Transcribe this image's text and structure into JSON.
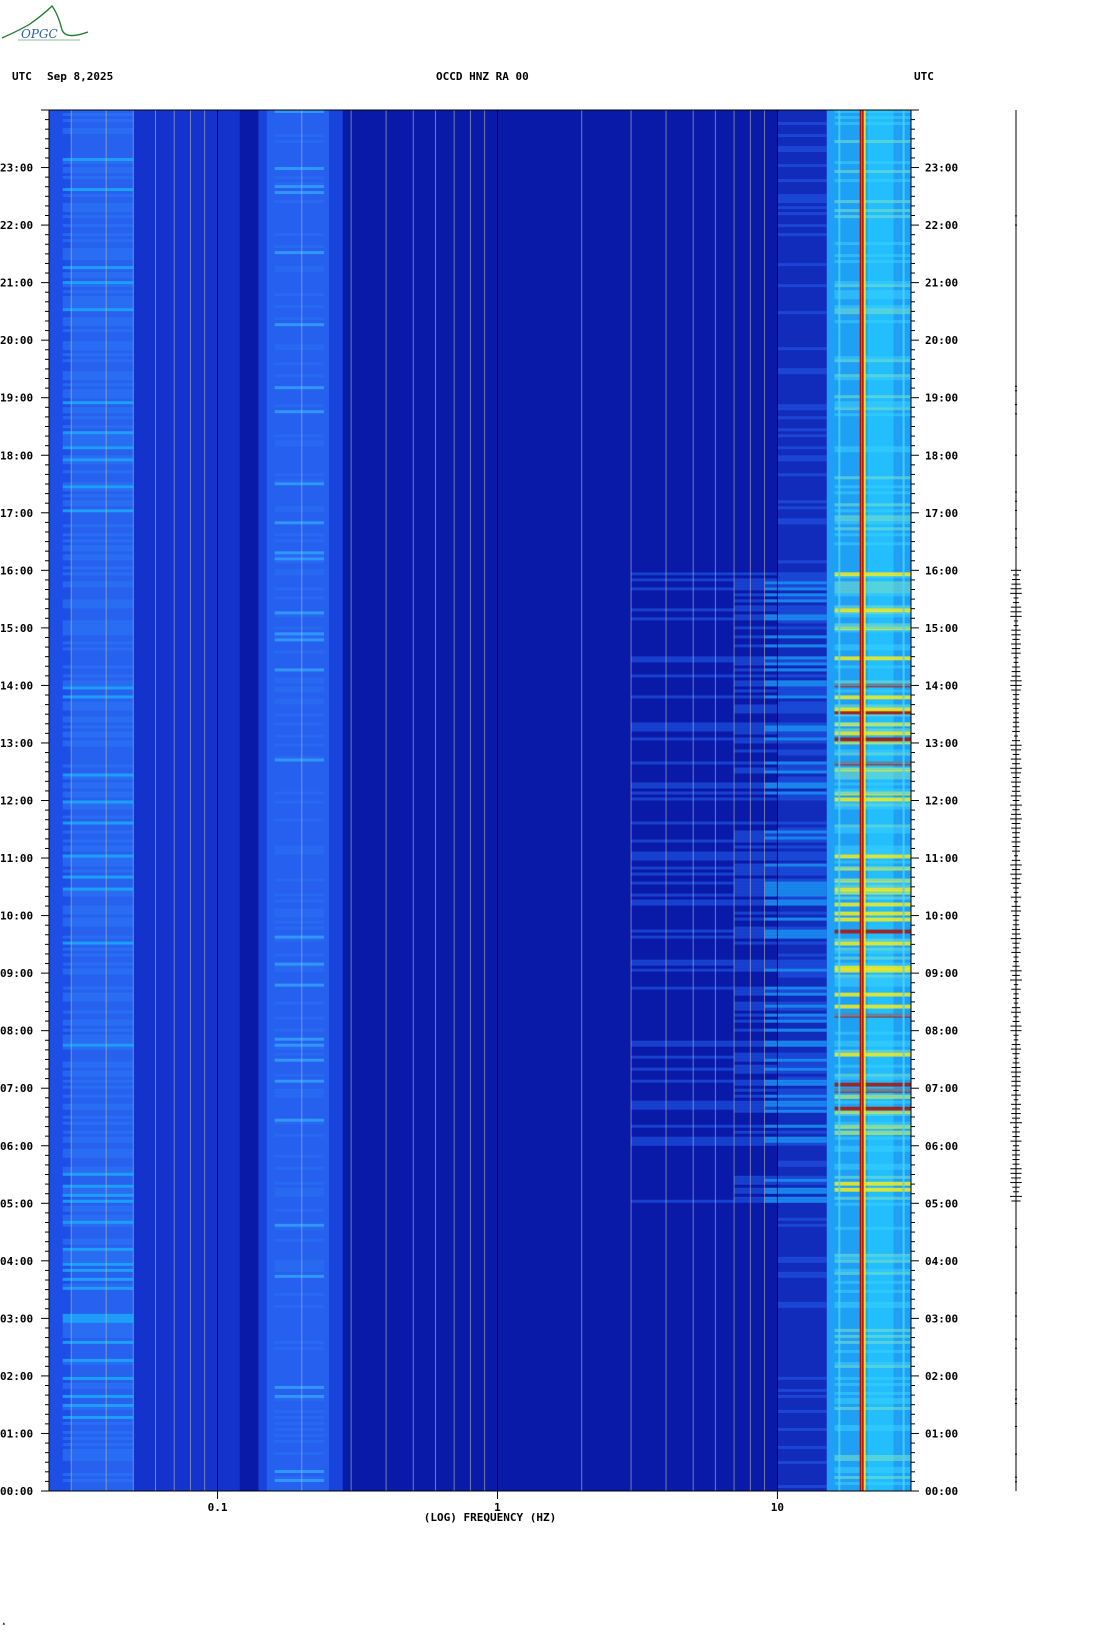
{
  "header": {
    "utc_left": "UTC",
    "date": "Sep 8,2025",
    "station": "OCCD HNZ RA 00",
    "utc_right": "UTC"
  },
  "logo": {
    "text": "OPGC"
  },
  "colors": {
    "background_low": "#0a1aa8",
    "mid_blue": "#1d4fe6",
    "cyan": "#19b8ff",
    "yellow": "#f4ec1c",
    "red": "#b01000",
    "grid": "#b9b9b9"
  },
  "chart_data": {
    "type": "heatmap",
    "title": "",
    "xlabel": "(LOG) FREQUENCY (HZ)",
    "ylabel": "",
    "x_scale": "log",
    "xlim_hz": [
      0.025,
      30
    ],
    "x_tick_labels": [
      {
        "value": 0.1,
        "label": "0.1"
      },
      {
        "value": 1,
        "label": "1"
      },
      {
        "value": 10,
        "label": "10"
      }
    ],
    "y_tick_labels": [
      "23:00",
      "22:00",
      "21:00",
      "20:00",
      "19:00",
      "18:00",
      "17:00",
      "16:00",
      "15:00",
      "14:00",
      "13:00",
      "12:00",
      "11:00",
      "10:00",
      "09:00",
      "08:00",
      "07:00",
      "06:00",
      "05:00",
      "04:00",
      "03:00",
      "02:00",
      "01:00",
      "00:00"
    ],
    "y_axis": "time UTC, 00:00 at bottom to 24:00 at top",
    "grid": true,
    "features": {
      "persistent_line_hz": 20,
      "high_energy_band_hz": [
        15,
        30
      ],
      "daytime_activity_hours": [
        5,
        16
      ],
      "microseism_band_hz": [
        0.15,
        0.25
      ],
      "low_freq_bright_band_hz": [
        0.03,
        0.05
      ]
    }
  }
}
